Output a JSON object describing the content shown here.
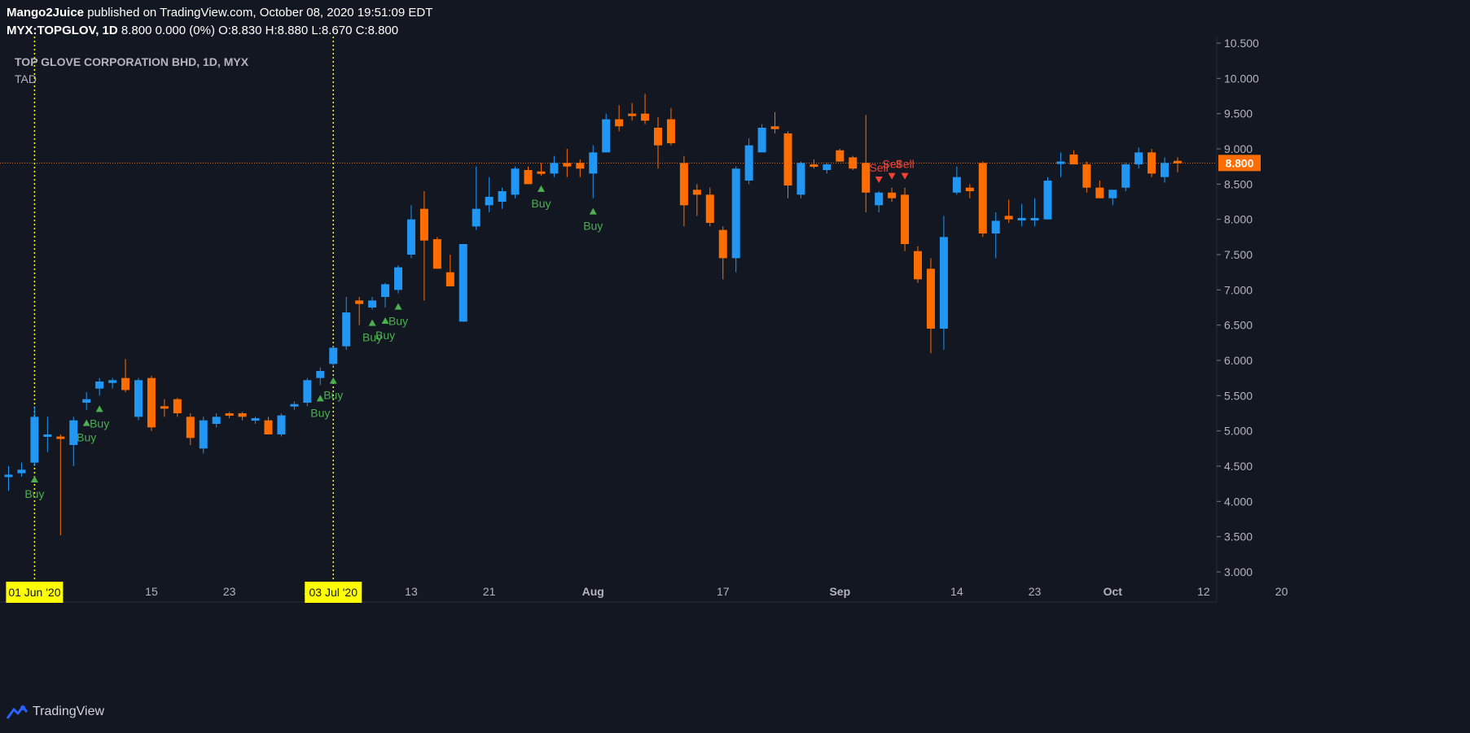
{
  "header": {
    "author": "Mango2Juice",
    "published": "published on TradingView.com, October 08, 2020 19:51:09 EDT",
    "symbol_line": "MYX:TOPGLOV, 1D",
    "quote_rest": "8.800 0.000 (0%) O:8.830 H:8.880 L:8.670 C:8.800"
  },
  "chart_title": "TOP GLOVE CORPORATION BHD, 1D, MYX",
  "indicator": "TAD",
  "footer": {
    "brand": "TradingView"
  },
  "colors": {
    "up": "#2196f3",
    "down": "#ff6d00",
    "buy": "#4caf50",
    "sell": "#f44336",
    "marker_line": "#ffff00",
    "bg": "#131722"
  },
  "chart_data": {
    "type": "candlestick",
    "ylim": [
      3.0,
      10.5
    ],
    "y_ticks": [
      "10.500",
      "10.000",
      "9.500",
      "9.000",
      "8.500",
      "8.000",
      "7.500",
      "7.000",
      "6.500",
      "6.000",
      "5.500",
      "5.000",
      "4.500",
      "4.000",
      "3.500",
      "3.000"
    ],
    "x_ticks": [
      {
        "label": "15",
        "bar": 11
      },
      {
        "label": "23",
        "bar": 17
      },
      {
        "label": "J",
        "bar": 23
      },
      {
        "label": "13",
        "bar": 31
      },
      {
        "label": "21",
        "bar": 37
      },
      {
        "label": "Aug",
        "bar": 45
      },
      {
        "label": "17",
        "bar": 55
      },
      {
        "label": "Sep",
        "bar": 64
      },
      {
        "label": "14",
        "bar": 73
      },
      {
        "label": "23",
        "bar": 79
      },
      {
        "label": "Oct",
        "bar": 85
      },
      {
        "label": "12",
        "bar": 92
      },
      {
        "label": "20",
        "bar": 98
      }
    ],
    "last_price": "8.800",
    "last_value": 8.8,
    "date_markers": [
      {
        "label": "01 Jun '20",
        "bar": 2
      },
      {
        "label": "03 Jul '20",
        "bar": 25
      }
    ],
    "candles": [
      {
        "o": 4.35,
        "h": 4.5,
        "l": 4.15,
        "c": 4.38
      },
      {
        "o": 4.4,
        "h": 4.55,
        "l": 4.35,
        "c": 4.45
      },
      {
        "o": 4.55,
        "h": 5.35,
        "l": 4.5,
        "c": 5.2
      },
      {
        "o": 4.95,
        "h": 5.2,
        "l": 4.7,
        "c": 4.95
      },
      {
        "o": 4.92,
        "h": 4.95,
        "l": 3.52,
        "c": 4.9
      },
      {
        "o": 4.8,
        "h": 5.2,
        "l": 4.5,
        "c": 5.15
      },
      {
        "o": 5.4,
        "h": 5.55,
        "l": 5.3,
        "c": 5.45
      },
      {
        "o": 5.6,
        "h": 5.75,
        "l": 5.5,
        "c": 5.7
      },
      {
        "o": 5.68,
        "h": 5.75,
        "l": 5.6,
        "c": 5.72
      },
      {
        "o": 5.75,
        "h": 6.02,
        "l": 5.55,
        "c": 5.58
      },
      {
        "o": 5.2,
        "h": 5.75,
        "l": 5.15,
        "c": 5.72
      },
      {
        "o": 5.75,
        "h": 5.78,
        "l": 5.0,
        "c": 5.05
      },
      {
        "o": 5.35,
        "h": 5.45,
        "l": 5.2,
        "c": 5.32
      },
      {
        "o": 5.45,
        "h": 5.47,
        "l": 5.2,
        "c": 5.25
      },
      {
        "o": 5.2,
        "h": 5.25,
        "l": 4.8,
        "c": 4.9
      },
      {
        "o": 4.75,
        "h": 5.2,
        "l": 4.68,
        "c": 5.15
      },
      {
        "o": 5.1,
        "h": 5.25,
        "l": 5.05,
        "c": 5.2
      },
      {
        "o": 5.25,
        "h": 5.27,
        "l": 5.18,
        "c": 5.22
      },
      {
        "o": 5.25,
        "h": 5.27,
        "l": 5.15,
        "c": 5.2
      },
      {
        "o": 5.15,
        "h": 5.2,
        "l": 5.1,
        "c": 5.18
      },
      {
        "o": 5.15,
        "h": 5.2,
        "l": 4.95,
        "c": 4.95
      },
      {
        "o": 4.95,
        "h": 5.25,
        "l": 4.92,
        "c": 5.22
      },
      {
        "o": 5.35,
        "h": 5.42,
        "l": 5.3,
        "c": 5.38
      },
      {
        "o": 5.4,
        "h": 5.75,
        "l": 5.35,
        "c": 5.72
      },
      {
        "o": 5.75,
        "h": 5.9,
        "l": 5.65,
        "c": 5.85
      },
      {
        "o": 5.95,
        "h": 6.2,
        "l": 5.9,
        "c": 6.18
      },
      {
        "o": 6.2,
        "h": 6.9,
        "l": 6.15,
        "c": 6.68
      },
      {
        "o": 6.85,
        "h": 6.9,
        "l": 6.5,
        "c": 6.8
      },
      {
        "o": 6.75,
        "h": 6.9,
        "l": 6.72,
        "c": 6.85
      },
      {
        "o": 6.9,
        "h": 7.1,
        "l": 6.75,
        "c": 7.08
      },
      {
        "o": 7.0,
        "h": 7.35,
        "l": 6.95,
        "c": 7.32
      },
      {
        "o": 7.5,
        "h": 8.2,
        "l": 7.45,
        "c": 8.0
      },
      {
        "o": 8.15,
        "h": 8.4,
        "l": 6.85,
        "c": 7.7
      },
      {
        "o": 7.72,
        "h": 7.75,
        "l": 7.3,
        "c": 7.3
      },
      {
        "o": 7.25,
        "h": 7.5,
        "l": 7.05,
        "c": 7.05
      },
      {
        "o": 6.55,
        "h": 7.65,
        "l": 6.55,
        "c": 7.65
      },
      {
        "o": 7.9,
        "h": 8.75,
        "l": 7.85,
        "c": 8.15
      },
      {
        "o": 8.2,
        "h": 8.6,
        "l": 8.1,
        "c": 8.32
      },
      {
        "o": 8.25,
        "h": 8.45,
        "l": 8.15,
        "c": 8.4
      },
      {
        "o": 8.35,
        "h": 8.75,
        "l": 8.3,
        "c": 8.72
      },
      {
        "o": 8.7,
        "h": 8.75,
        "l": 8.5,
        "c": 8.5
      },
      {
        "o": 8.68,
        "h": 8.8,
        "l": 8.62,
        "c": 8.65
      },
      {
        "o": 8.65,
        "h": 8.9,
        "l": 8.6,
        "c": 8.8
      },
      {
        "o": 8.8,
        "h": 9.0,
        "l": 8.6,
        "c": 8.75
      },
      {
        "o": 8.8,
        "h": 8.85,
        "l": 8.6,
        "c": 8.72
      },
      {
        "o": 8.65,
        "h": 9.05,
        "l": 8.3,
        "c": 8.95
      },
      {
        "o": 8.95,
        "h": 9.5,
        "l": 8.95,
        "c": 9.42
      },
      {
        "o": 9.42,
        "h": 9.62,
        "l": 9.25,
        "c": 9.32
      },
      {
        "o": 9.5,
        "h": 9.65,
        "l": 9.4,
        "c": 9.48
      },
      {
        "o": 9.5,
        "h": 9.78,
        "l": 9.35,
        "c": 9.4
      },
      {
        "o": 9.3,
        "h": 9.45,
        "l": 8.72,
        "c": 9.05
      },
      {
        "o": 9.42,
        "h": 9.58,
        "l": 9.05,
        "c": 9.08
      },
      {
        "o": 8.8,
        "h": 8.9,
        "l": 7.9,
        "c": 8.2
      },
      {
        "o": 8.42,
        "h": 8.5,
        "l": 8.05,
        "c": 8.35
      },
      {
        "o": 8.35,
        "h": 8.45,
        "l": 7.9,
        "c": 7.95
      },
      {
        "o": 7.85,
        "h": 7.9,
        "l": 7.15,
        "c": 7.45
      },
      {
        "o": 7.45,
        "h": 8.75,
        "l": 7.25,
        "c": 8.72
      },
      {
        "o": 8.55,
        "h": 9.15,
        "l": 8.5,
        "c": 9.05
      },
      {
        "o": 8.95,
        "h": 9.35,
        "l": 8.95,
        "c": 9.3
      },
      {
        "o": 9.32,
        "h": 9.52,
        "l": 9.22,
        "c": 9.28
      },
      {
        "o": 9.22,
        "h": 9.25,
        "l": 8.3,
        "c": 8.48
      },
      {
        "o": 8.35,
        "h": 8.82,
        "l": 8.3,
        "c": 8.8
      },
      {
        "o": 8.78,
        "h": 8.85,
        "l": 8.72,
        "c": 8.75
      },
      {
        "o": 8.7,
        "h": 8.8,
        "l": 8.65,
        "c": 8.78
      },
      {
        "o": 8.98,
        "h": 9.0,
        "l": 8.82,
        "c": 8.82
      },
      {
        "o": 8.88,
        "h": 8.9,
        "l": 8.7,
        "c": 8.72
      },
      {
        "o": 8.8,
        "h": 9.48,
        "l": 8.1,
        "c": 8.38
      },
      {
        "o": 8.2,
        "h": 8.4,
        "l": 8.1,
        "c": 8.38
      },
      {
        "o": 8.38,
        "h": 8.45,
        "l": 8.25,
        "c": 8.3
      },
      {
        "o": 8.35,
        "h": 8.45,
        "l": 7.55,
        "c": 7.65
      },
      {
        "o": 7.55,
        "h": 7.62,
        "l": 7.1,
        "c": 7.15
      },
      {
        "o": 7.3,
        "h": 7.45,
        "l": 6.1,
        "c": 6.45
      },
      {
        "o": 6.45,
        "h": 8.05,
        "l": 6.15,
        "c": 7.75
      },
      {
        "o": 8.38,
        "h": 8.75,
        "l": 8.35,
        "c": 8.6
      },
      {
        "o": 8.45,
        "h": 8.5,
        "l": 8.3,
        "c": 8.4
      },
      {
        "o": 8.8,
        "h": 8.82,
        "l": 7.75,
        "c": 7.8
      },
      {
        "o": 7.8,
        "h": 8.1,
        "l": 7.45,
        "c": 7.98
      },
      {
        "o": 8.05,
        "h": 8.28,
        "l": 7.95,
        "c": 8.0
      },
      {
        "o": 8.0,
        "h": 8.22,
        "l": 7.9,
        "c": 8.02
      },
      {
        "o": 8.0,
        "h": 8.3,
        "l": 7.9,
        "c": 8.02
      },
      {
        "o": 8.0,
        "h": 8.6,
        "l": 8.0,
        "c": 8.55
      },
      {
        "o": 8.8,
        "h": 8.95,
        "l": 8.6,
        "c": 8.82
      },
      {
        "o": 8.92,
        "h": 8.98,
        "l": 8.8,
        "c": 8.78
      },
      {
        "o": 8.78,
        "h": 8.82,
        "l": 8.38,
        "c": 8.45
      },
      {
        "o": 8.45,
        "h": 8.55,
        "l": 8.3,
        "c": 8.3
      },
      {
        "o": 8.3,
        "h": 8.42,
        "l": 8.2,
        "c": 8.42
      },
      {
        "o": 8.45,
        "h": 8.8,
        "l": 8.4,
        "c": 8.78
      },
      {
        "o": 8.78,
        "h": 9.02,
        "l": 8.72,
        "c": 8.95
      },
      {
        "o": 8.95,
        "h": 9.0,
        "l": 8.6,
        "c": 8.65
      },
      {
        "o": 8.6,
        "h": 8.88,
        "l": 8.52,
        "c": 8.8
      },
      {
        "o": 8.83,
        "h": 8.88,
        "l": 8.67,
        "c": 8.8
      }
    ],
    "signals": [
      {
        "bar": 2,
        "type": "buy",
        "text": "Buy"
      },
      {
        "bar": 6,
        "type": "buy",
        "text": "Buy"
      },
      {
        "bar": 7,
        "type": "buy",
        "text": "Buy"
      },
      {
        "bar": 24,
        "type": "buy",
        "text": "Buy"
      },
      {
        "bar": 25,
        "type": "buy",
        "text": "Buy"
      },
      {
        "bar": 28,
        "type": "buy",
        "text": "Buy"
      },
      {
        "bar": 29,
        "type": "buy",
        "text": "Buy"
      },
      {
        "bar": 30,
        "type": "buy",
        "text": "Buy"
      },
      {
        "bar": 41,
        "type": "buy",
        "text": "Buy"
      },
      {
        "bar": 45,
        "type": "buy",
        "text": "Buy"
      },
      {
        "bar": 67,
        "type": "sell",
        "text": "Sell"
      },
      {
        "bar": 68,
        "type": "sell",
        "text": "Sell"
      },
      {
        "bar": 69,
        "type": "sell",
        "text": "Sell"
      }
    ]
  }
}
